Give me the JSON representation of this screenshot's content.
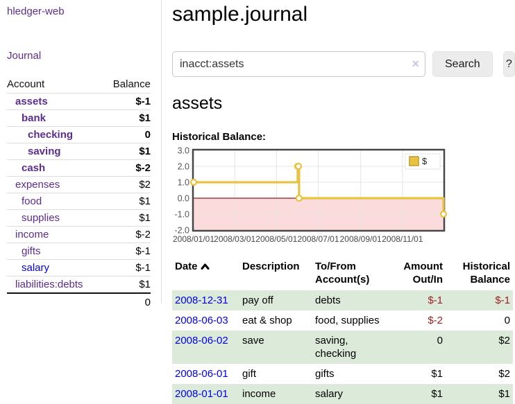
{
  "sidebar": {
    "app_title": "hledger-web",
    "journal_link": "Journal",
    "accounts_table": {
      "account_header": "Account",
      "balance_header": "Balance",
      "accounts": [
        {
          "name": "assets",
          "level": 1,
          "bold": true,
          "balance": "$-1",
          "balance_style": "negative-strong"
        },
        {
          "name": "bank",
          "level": 2,
          "bold": true,
          "balance": "$1",
          "balance_style": "normal"
        },
        {
          "name": "checking",
          "level": 3,
          "bold": true,
          "balance": "0",
          "balance_style": "normal"
        },
        {
          "name": "saving",
          "level": 3,
          "bold": true,
          "balance": "$1",
          "balance_style": "normal"
        },
        {
          "name": "cash",
          "level": 2,
          "bold": true,
          "balance": "$-2",
          "balance_style": "negative-strong"
        },
        {
          "name": "expenses",
          "level": 1,
          "bold": false,
          "balance": "$2",
          "balance_style": "normal"
        },
        {
          "name": "food",
          "level": 2,
          "bold": false,
          "balance": "$1",
          "balance_style": "normal"
        },
        {
          "name": "supplies",
          "level": 2,
          "bold": false,
          "balance": "$1",
          "balance_style": "normal"
        },
        {
          "name": "income",
          "level": 1,
          "bold": false,
          "balance": "$-2",
          "balance_style": "negative-soft"
        },
        {
          "name": "gifts",
          "level": 2,
          "bold": false,
          "balance": "$-1",
          "balance_style": "negative-soft"
        },
        {
          "name": "salary",
          "level": 2,
          "bold": false,
          "balance": "$-1",
          "balance_style": "negative-soft",
          "link_color": "blue"
        },
        {
          "name": "liabilities:debts",
          "level": 1,
          "bold": false,
          "balance": "$1",
          "balance_style": "normal"
        }
      ],
      "total": "0"
    }
  },
  "header": {
    "title": "sample.journal"
  },
  "search": {
    "query": "inacct:assets",
    "clear_icon": "×",
    "search_button": "Search",
    "help_button": "?"
  },
  "account_page": {
    "title": "assets",
    "section_label": "Historical Balance:"
  },
  "chart_data": {
    "type": "line",
    "title": "Historical Balance",
    "steps": true,
    "series": [
      {
        "name": "$",
        "color": "#e8c341",
        "points": [
          [
            "2008-01-01",
            1
          ],
          [
            "2008-06-01",
            2
          ],
          [
            "2008-06-02",
            2
          ],
          [
            "2008-06-03",
            0
          ],
          [
            "2008-12-31",
            -1
          ]
        ]
      }
    ],
    "x_ticks": [
      "2008/01/01",
      "2008/03/01",
      "2008/05/01",
      "2008/07/01",
      "2008/09/01",
      "2008/11/01"
    ],
    "y_ticks": [
      3,
      2,
      1,
      0,
      -1,
      -2
    ],
    "ylim": [
      -2,
      3
    ],
    "x_range_days": [
      0,
      365
    ],
    "grid": true,
    "legend": {
      "label": "$",
      "position": "top-right"
    },
    "negative_fill": "#fbdbdb",
    "zero_line_color": "#8b1a1a"
  },
  "register": {
    "columns": [
      {
        "label": "Date",
        "sortable": true,
        "sort": "asc"
      },
      {
        "label": "Description"
      },
      {
        "label": "To/From Account(s)"
      },
      {
        "label": "Amount Out/In",
        "align": "right"
      },
      {
        "label": "Historical Balance",
        "align": "right"
      }
    ],
    "rows": [
      {
        "date": "2008-12-31",
        "description": "pay off",
        "accounts": "debts",
        "amount": "$-1",
        "amount_negative": true,
        "balance": "$-1",
        "balance_negative": true
      },
      {
        "date": "2008-06-03",
        "description": "eat & shop",
        "accounts": "food, supplies",
        "amount": "$-2",
        "amount_negative": true,
        "balance": "0",
        "balance_negative": false
      },
      {
        "date": "2008-06-02",
        "description": "save",
        "accounts": "saving, checking",
        "amount": "0",
        "amount_negative": false,
        "balance": "$2",
        "balance_negative": false
      },
      {
        "date": "2008-06-01",
        "description": "gift",
        "accounts": "gifts",
        "amount": "$1",
        "amount_negative": false,
        "balance": "$2",
        "balance_negative": false
      },
      {
        "date": "2008-01-01",
        "description": "income",
        "accounts": "salary",
        "amount": "$1",
        "amount_negative": false,
        "balance": "$1",
        "balance_negative": false
      }
    ]
  },
  "colors": {
    "link_purple": "#5c2d91",
    "link_blue": "#0000ee",
    "negative_strong": "#9d1f1f",
    "negative_soft": "#bc7d7d",
    "row_stripe_green": "#dcead9",
    "chart_line_gold": "#e8c341",
    "chart_negative_fill": "#fbdbdb",
    "chart_zero_line": "#8b1a1a"
  }
}
